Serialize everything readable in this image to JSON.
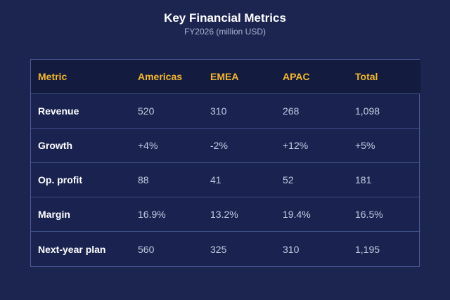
{
  "chart_data": {
    "type": "table",
    "title": "Key Financial Metrics",
    "subtitle": "FY2026 (million USD)",
    "columns": [
      "Metric",
      "Americas",
      "EMEA",
      "APAC",
      "Total"
    ],
    "rows": [
      {
        "label": "Revenue",
        "values": [
          "520",
          "310",
          "268",
          "1,098"
        ]
      },
      {
        "label": "Growth",
        "values": [
          "+4%",
          "-2%",
          "+12%",
          "+5%"
        ]
      },
      {
        "label": "Op. profit",
        "values": [
          "88",
          "41",
          "52",
          "181"
        ]
      },
      {
        "label": "Margin",
        "values": [
          "16.9%",
          "13.2%",
          "19.4%",
          "16.5%"
        ]
      },
      {
        "label": "Next-year plan",
        "values": [
          "560",
          "325",
          "310",
          "1,195"
        ]
      }
    ]
  },
  "colors": {
    "background": "#1c2550",
    "header_bg": "#131b3e",
    "header_text": "#f4b731",
    "row_label_text": "#ffffff",
    "cell_text": "#c3cae0",
    "border": "#4a5a96"
  }
}
